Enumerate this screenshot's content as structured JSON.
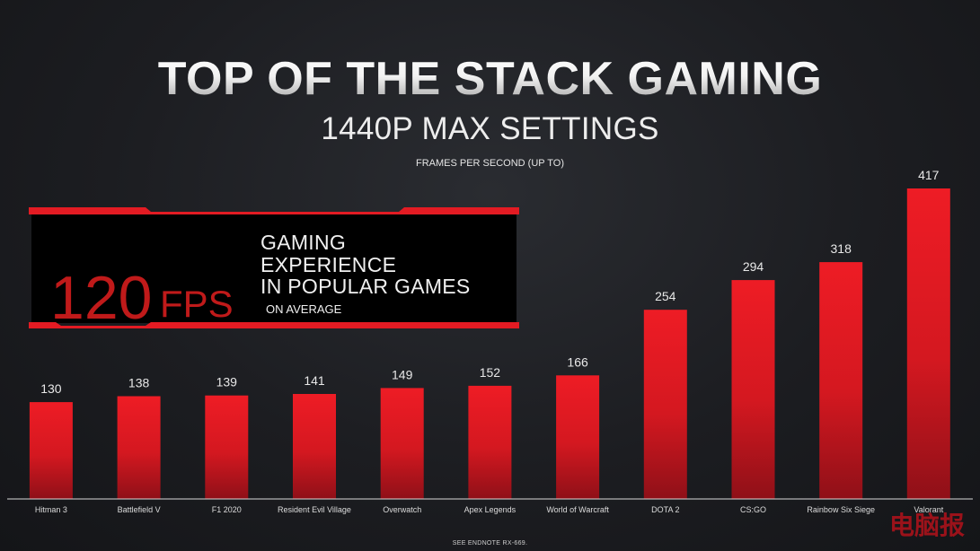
{
  "title": "TOP OF THE STACK GAMING",
  "subtitle": "1440P MAX SETTINGS",
  "axis_caption": "FRAMES PER SECOND (UP TO)",
  "callout": {
    "number": "120",
    "unit": "FPS",
    "line1": "GAMING",
    "line2": "EXPERIENCE",
    "line3": "IN POPULAR GAMES",
    "sub": "ON AVERAGE"
  },
  "footnote": "SEE ENDNOTE RX-669.",
  "watermark": "电脑报",
  "colors": {
    "bar_top": "#ee1c25",
    "bar_bottom": "#8f1018",
    "callout_stripe": "#e31b23",
    "callout_number": "#c01a1a",
    "background": "#1c1d21"
  },
  "chart_data": {
    "type": "bar",
    "title": "TOP OF THE STACK GAMING",
    "subtitle": "1440P MAX SETTINGS",
    "ylabel": "FRAMES PER SECOND (UP TO)",
    "xlabel": "",
    "categories": [
      "Hitman 3",
      "Battlefield V",
      "F1 2020",
      "Resident Evil Village",
      "Overwatch",
      "Apex Legends",
      "World of Warcraft",
      "DOTA 2",
      "CS:GO",
      "Rainbow Six Siege",
      "Valorant"
    ],
    "values": [
      130,
      138,
      139,
      141,
      149,
      152,
      166,
      254,
      294,
      318,
      417
    ],
    "ylim": [
      0,
      417
    ],
    "grid": false,
    "legend": "none",
    "data_labels": true
  }
}
